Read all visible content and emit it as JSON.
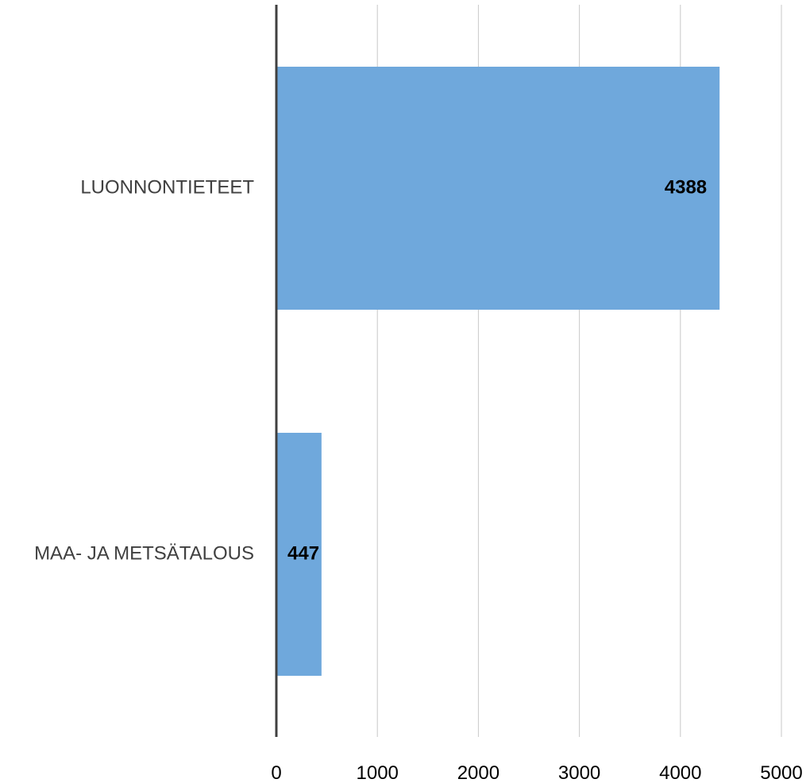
{
  "chart_data": {
    "type": "bar",
    "orientation": "horizontal",
    "title": "",
    "xlabel": "",
    "ylabel": "",
    "categories": [
      "LUONNONTIETEET",
      "MAA- JA METSÄTALOUS"
    ],
    "values": [
      4388,
      447
    ],
    "data_labels": [
      "4388",
      "447"
    ],
    "xlim": [
      0,
      5000
    ],
    "ticks": [
      0,
      1000,
      2000,
      3000,
      4000,
      5000
    ],
    "tick_labels": [
      "0",
      "1000",
      "2000",
      "3000",
      "4000",
      "5000"
    ],
    "grid": true,
    "legend": "none",
    "colors": {
      "bar": "#6fa8dc",
      "axis": "#404040",
      "grid": "#c8c8c8"
    }
  }
}
